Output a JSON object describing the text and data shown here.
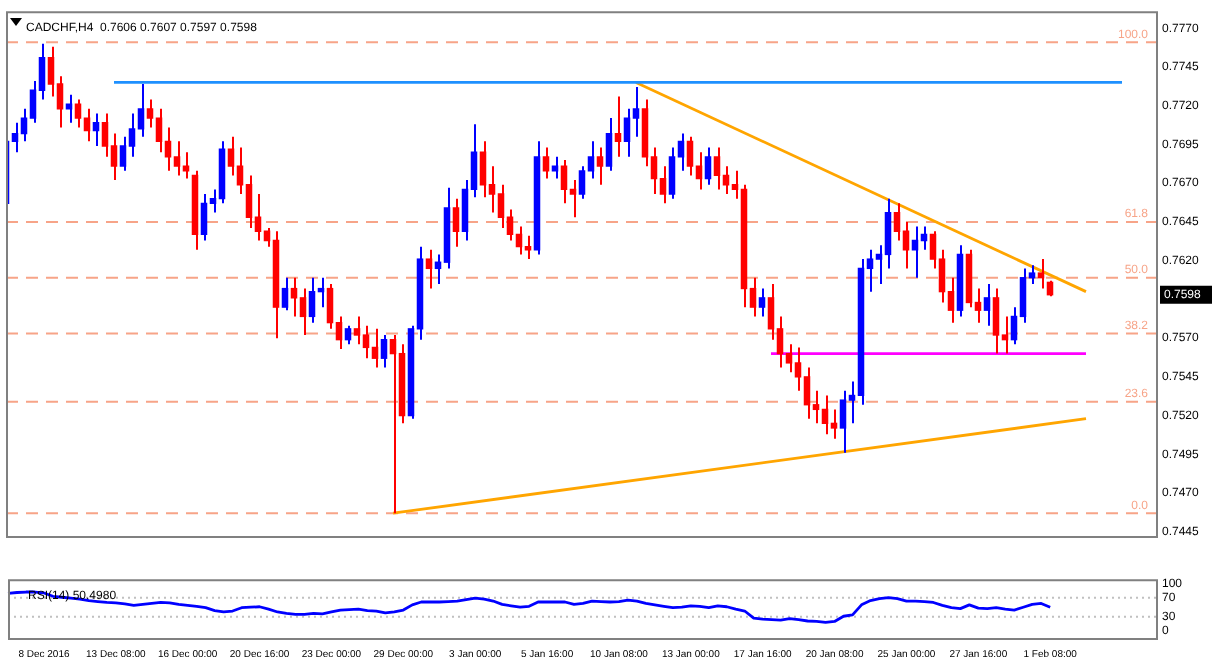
{
  "chart_data": [
    {
      "type": "candlestick",
      "title": "CADCHF,H4  0.7606 0.7607 0.7597 0.7598",
      "categories": [
        null,
        null,
        null,
        null,
        null,
        null,
        null,
        null,
        null,
        null,
        null,
        null,
        null,
        null,
        null,
        null,
        null,
        null,
        null,
        null,
        null,
        null,
        null,
        null,
        null,
        null,
        null,
        null,
        null,
        null,
        null,
        null,
        null,
        null,
        null,
        null,
        null,
        null,
        null,
        null,
        null,
        null,
        null,
        null,
        null,
        null,
        null,
        null,
        null,
        null,
        null,
        null,
        null,
        null,
        null,
        null,
        null,
        null,
        null,
        null,
        null,
        null,
        null,
        null,
        null,
        null,
        null,
        null,
        null,
        null,
        null,
        null,
        null,
        null,
        null,
        null,
        null,
        null,
        null,
        null,
        null,
        null,
        null,
        null,
        null,
        null,
        null,
        null,
        null,
        null,
        null,
        null,
        null,
        null,
        null,
        null,
        null,
        null,
        null,
        null,
        null,
        null,
        null,
        null,
        null,
        null,
        null,
        null,
        null,
        null,
        null,
        null,
        null,
        null,
        null,
        null,
        null,
        null,
        null,
        null,
        null,
        null,
        null,
        null,
        null,
        null,
        null,
        null,
        null
      ],
      "ohlc": [
        [
          0.7657,
          0.7702,
          0.7653,
          0.7697
        ],
        [
          0.7697,
          0.7709,
          0.769,
          0.7702
        ],
        [
          0.7702,
          0.7718,
          0.7697,
          0.7712
        ],
        [
          0.7712,
          0.7736,
          0.7709,
          0.773
        ],
        [
          0.773,
          0.776,
          0.7724,
          0.7751
        ],
        [
          0.7751,
          0.7758,
          0.7726,
          0.7734
        ],
        [
          0.7734,
          0.7739,
          0.7706,
          0.7718
        ],
        [
          0.7718,
          0.7727,
          0.7709,
          0.7721
        ],
        [
          0.7721,
          0.7724,
          0.7706,
          0.7712
        ],
        [
          0.7712,
          0.7718,
          0.7697,
          0.7704
        ],
        [
          0.7704,
          0.7715,
          0.7694,
          0.7709
        ],
        [
          0.7709,
          0.7715,
          0.7687,
          0.7694
        ],
        [
          0.7694,
          0.7702,
          0.7672,
          0.7681
        ],
        [
          0.7681,
          0.77,
          0.7678,
          0.7694
        ],
        [
          0.7694,
          0.7715,
          0.7687,
          0.7705
        ],
        [
          0.7705,
          0.7734,
          0.77,
          0.7718
        ],
        [
          0.7718,
          0.7724,
          0.7706,
          0.7712
        ],
        [
          0.7712,
          0.7718,
          0.769,
          0.7697
        ],
        [
          0.7697,
          0.7706,
          0.7678,
          0.7687
        ],
        [
          0.7687,
          0.7697,
          0.7675,
          0.7681
        ],
        [
          0.7681,
          0.769,
          0.7673,
          0.7678
        ],
        [
          0.7675,
          0.7678,
          0.7627,
          0.7637
        ],
        [
          0.7637,
          0.7663,
          0.7633,
          0.7657
        ],
        [
          0.7657,
          0.7666,
          0.7651,
          0.766
        ],
        [
          0.766,
          0.7697,
          0.7657,
          0.7692
        ],
        [
          0.7692,
          0.77,
          0.7675,
          0.7681
        ],
        [
          0.7681,
          0.7693,
          0.7663,
          0.7669
        ],
        [
          0.7669,
          0.7675,
          0.7641,
          0.7648
        ],
        [
          0.7648,
          0.7663,
          0.7633,
          0.7639
        ],
        [
          0.7639,
          0.7641,
          0.7629,
          0.7633
        ],
        [
          0.7633,
          0.7639,
          0.757,
          0.759
        ],
        [
          0.759,
          0.7609,
          0.7588,
          0.7602
        ],
        [
          0.7602,
          0.7609,
          0.7584,
          0.7596
        ],
        [
          0.7596,
          0.7602,
          0.7572,
          0.7584
        ],
        [
          0.7584,
          0.7609,
          0.758,
          0.76
        ],
        [
          0.76,
          0.7609,
          0.759,
          0.7602
        ],
        [
          0.7602,
          0.7605,
          0.7576,
          0.758
        ],
        [
          0.758,
          0.7584,
          0.7563,
          0.7569
        ],
        [
          0.7569,
          0.7578,
          0.7566,
          0.7576
        ],
        [
          0.7576,
          0.7584,
          0.7566,
          0.7572
        ],
        [
          0.7572,
          0.7578,
          0.7557,
          0.7564
        ],
        [
          0.7564,
          0.7576,
          0.7551,
          0.7557
        ],
        [
          0.7557,
          0.7572,
          0.7551,
          0.7569
        ],
        [
          0.7569,
          0.7572,
          0.7457,
          0.756
        ],
        [
          0.756,
          0.7566,
          0.7515,
          0.752
        ],
        [
          0.752,
          0.7578,
          0.7518,
          0.7576
        ],
        [
          0.7576,
          0.7629,
          0.7569,
          0.7621
        ],
        [
          0.7621,
          0.7627,
          0.7602,
          0.7615
        ],
        [
          0.7615,
          0.7624,
          0.7605,
          0.7619
        ],
        [
          0.7619,
          0.7667,
          0.7615,
          0.7654
        ],
        [
          0.7654,
          0.766,
          0.7629,
          0.7639
        ],
        [
          0.7639,
          0.7672,
          0.7633,
          0.7666
        ],
        [
          0.7666,
          0.7708,
          0.7661,
          0.769
        ],
        [
          0.769,
          0.7697,
          0.7661,
          0.7669
        ],
        [
          0.7669,
          0.7681,
          0.7651,
          0.7663
        ],
        [
          0.7663,
          0.7669,
          0.7641,
          0.7648
        ],
        [
          0.7648,
          0.7653,
          0.7633,
          0.7637
        ],
        [
          0.7637,
          0.7642,
          0.7624,
          0.7629
        ],
        [
          0.7629,
          0.7636,
          0.7621,
          0.7627
        ],
        [
          0.7627,
          0.7697,
          0.7624,
          0.7687
        ],
        [
          0.7687,
          0.7693,
          0.7673,
          0.7678
        ],
        [
          0.7678,
          0.7687,
          0.7673,
          0.7681
        ],
        [
          0.7681,
          0.7685,
          0.7657,
          0.7666
        ],
        [
          0.7666,
          0.7672,
          0.7648,
          0.7663
        ],
        [
          0.7663,
          0.7681,
          0.766,
          0.7678
        ],
        [
          0.7678,
          0.7697,
          0.7673,
          0.7687
        ],
        [
          0.7687,
          0.7693,
          0.7669,
          0.7681
        ],
        [
          0.7681,
          0.7712,
          0.7678,
          0.7702
        ],
        [
          0.7702,
          0.7726,
          0.7687,
          0.7697
        ],
        [
          0.7697,
          0.7718,
          0.7687,
          0.7712
        ],
        [
          0.7712,
          0.7732,
          0.77,
          0.7718
        ],
        [
          0.7718,
          0.7724,
          0.7681,
          0.7687
        ],
        [
          0.7687,
          0.7693,
          0.7663,
          0.7673
        ],
        [
          0.7673,
          0.7681,
          0.7657,
          0.7663
        ],
        [
          0.7663,
          0.7693,
          0.766,
          0.7687
        ],
        [
          0.7687,
          0.7702,
          0.7678,
          0.7697
        ],
        [
          0.7697,
          0.77,
          0.7675,
          0.7681
        ],
        [
          0.7681,
          0.769,
          0.7666,
          0.7673
        ],
        [
          0.7673,
          0.7693,
          0.7669,
          0.7687
        ],
        [
          0.7687,
          0.7693,
          0.7666,
          0.7675
        ],
        [
          0.7675,
          0.7681,
          0.7663,
          0.7669
        ],
        [
          0.7669,
          0.7678,
          0.766,
          0.7666
        ],
        [
          0.7666,
          0.7669,
          0.759,
          0.7602
        ],
        [
          0.7602,
          0.7609,
          0.7584,
          0.759
        ],
        [
          0.759,
          0.7602,
          0.7584,
          0.7596
        ],
        [
          0.7596,
          0.7605,
          0.7569,
          0.7576
        ],
        [
          0.7576,
          0.7584,
          0.7551,
          0.756
        ],
        [
          0.756,
          0.7566,
          0.7548,
          0.7554
        ],
        [
          0.7554,
          0.7564,
          0.7536,
          0.7545
        ],
        [
          0.7545,
          0.7551,
          0.7518,
          0.7527
        ],
        [
          0.7527,
          0.7536,
          0.7515,
          0.7524
        ],
        [
          0.7524,
          0.7533,
          0.7508,
          0.7515
        ],
        [
          0.7515,
          0.7524,
          0.7505,
          0.7512
        ],
        [
          0.7512,
          0.7536,
          0.7496,
          0.753
        ],
        [
          0.753,
          0.7542,
          0.7515,
          0.7533
        ],
        [
          0.7533,
          0.7621,
          0.7527,
          0.7615
        ],
        [
          0.7615,
          0.7627,
          0.76,
          0.7621
        ],
        [
          0.7621,
          0.763,
          0.7605,
          0.7624
        ],
        [
          0.7624,
          0.766,
          0.7615,
          0.7651
        ],
        [
          0.7651,
          0.7657,
          0.7633,
          0.7639
        ],
        [
          0.7639,
          0.7645,
          0.7615,
          0.7627
        ],
        [
          0.7627,
          0.7642,
          0.7609,
          0.7633
        ],
        [
          0.7633,
          0.7642,
          0.7627,
          0.7637
        ],
        [
          0.7637,
          0.7639,
          0.7615,
          0.7621
        ],
        [
          0.7621,
          0.7627,
          0.7593,
          0.76
        ],
        [
          0.76,
          0.7609,
          0.758,
          0.7588
        ],
        [
          0.7588,
          0.763,
          0.7584,
          0.7624
        ],
        [
          0.7624,
          0.7627,
          0.759,
          0.7593
        ],
        [
          0.7593,
          0.7602,
          0.758,
          0.7588
        ],
        [
          0.7588,
          0.7605,
          0.7578,
          0.7596
        ],
        [
          0.7596,
          0.7602,
          0.756,
          0.7572
        ],
        [
          0.7572,
          0.7584,
          0.756,
          0.7569
        ],
        [
          0.7569,
          0.759,
          0.7566,
          0.7584
        ],
        [
          0.7584,
          0.7615,
          0.758,
          0.7609
        ],
        [
          0.7609,
          0.7617,
          0.7605,
          0.7612
        ],
        [
          0.7612,
          0.7621,
          0.7602,
          0.7609
        ],
        [
          0.7606,
          0.7607,
          0.7597,
          0.7598
        ],
        null,
        null,
        null,
        null,
        null,
        null,
        null,
        null,
        null,
        null,
        null,
        null
      ],
      "series": [
        {
          "type": "line",
          "color": "#1e90ff",
          "values": [
            null,
            null,
            null,
            null,
            null,
            null,
            null,
            null,
            null,
            null,
            null,
            null,
            0.7735,
            null,
            null,
            null,
            null,
            null,
            null,
            null,
            null,
            null,
            null,
            null,
            null,
            null,
            null,
            null,
            null,
            null,
            null,
            null,
            null,
            null,
            null,
            null,
            null,
            null,
            null,
            null,
            null,
            null,
            null,
            null,
            null,
            null,
            null,
            null,
            null,
            null,
            null,
            null,
            null,
            null,
            null,
            null,
            null,
            null,
            null,
            null,
            null,
            null,
            null,
            null,
            null,
            null,
            null,
            null,
            null,
            null,
            null,
            null,
            null,
            null,
            null,
            null,
            null,
            null,
            null,
            null,
            null,
            null,
            null,
            null,
            null,
            null,
            null,
            null,
            null,
            null,
            null,
            null,
            null,
            null,
            null,
            null,
            null,
            null,
            null,
            null,
            null,
            null,
            null,
            null,
            null,
            null,
            null,
            null,
            null,
            null,
            null,
            null,
            null,
            null,
            null,
            null,
            null,
            null,
            null,
            null,
            null,
            null,
            null,
            null,
            0.7735,
            null,
            null,
            null,
            null
          ]
        },
        {
          "type": "line",
          "color": "#ffa500",
          "values": [
            null,
            null,
            null,
            null,
            null,
            null,
            null,
            null,
            null,
            null,
            null,
            null,
            null,
            null,
            null,
            null,
            null,
            null,
            null,
            null,
            null,
            null,
            null,
            null,
            null,
            null,
            null,
            null,
            null,
            null,
            null,
            null,
            null,
            null,
            null,
            null,
            null,
            null,
            null,
            null,
            null,
            null,
            null,
            null,
            null,
            null,
            null,
            null,
            null,
            null,
            null,
            null,
            null,
            null,
            null,
            null,
            null,
            null,
            null,
            null,
            null,
            null,
            null,
            null,
            null,
            null,
            null,
            null,
            null,
            null,
            0.7735,
            null,
            null,
            null,
            null,
            null,
            null,
            null,
            null,
            null,
            null,
            null,
            null,
            null,
            null,
            null,
            null,
            null,
            null,
            null,
            null,
            null,
            null,
            null,
            null,
            null,
            null,
            null,
            null,
            null,
            null,
            null,
            null,
            null,
            null,
            null,
            null,
            null,
            null,
            null,
            null,
            null,
            null,
            null,
            null,
            null,
            null,
            null,
            null,
            null,
            0.76,
            null,
            null,
            null,
            null,
            null,
            null,
            null,
            null
          ]
        },
        {
          "type": "line",
          "color": "#ffa500",
          "values": [
            null,
            null,
            null,
            null,
            null,
            null,
            null,
            null,
            null,
            null,
            null,
            null,
            null,
            null,
            null,
            null,
            null,
            null,
            null,
            null,
            null,
            null,
            null,
            null,
            null,
            null,
            null,
            null,
            null,
            null,
            null,
            null,
            null,
            null,
            null,
            null,
            null,
            null,
            null,
            null,
            null,
            null,
            null,
            0.7457,
            null,
            null,
            null,
            null,
            null,
            null,
            null,
            null,
            null,
            null,
            null,
            null,
            null,
            null,
            null,
            null,
            null,
            null,
            null,
            null,
            null,
            null,
            null,
            null,
            null,
            null,
            null,
            null,
            null,
            null,
            null,
            null,
            null,
            null,
            null,
            null,
            null,
            null,
            null,
            null,
            null,
            null,
            null,
            null,
            null,
            null,
            null,
            null,
            null,
            null,
            null,
            null,
            null,
            null,
            null,
            null,
            null,
            null,
            null,
            null,
            null,
            null,
            null,
            null,
            null,
            null,
            null,
            null,
            null,
            null,
            null,
            null,
            null,
            null,
            null,
            null,
            0.7518,
            null,
            null,
            null,
            null,
            null,
            null,
            null,
            null
          ]
        },
        {
          "type": "line",
          "color": "#ff00ff",
          "values": [
            null,
            null,
            null,
            null,
            null,
            null,
            null,
            null,
            null,
            null,
            null,
            null,
            null,
            null,
            null,
            null,
            null,
            null,
            null,
            null,
            null,
            null,
            null,
            null,
            null,
            null,
            null,
            null,
            null,
            null,
            null,
            null,
            null,
            null,
            null,
            null,
            null,
            null,
            null,
            null,
            null,
            null,
            null,
            null,
            null,
            null,
            null,
            null,
            null,
            null,
            null,
            null,
            null,
            null,
            null,
            null,
            null,
            null,
            null,
            null,
            null,
            null,
            null,
            null,
            null,
            null,
            null,
            null,
            null,
            null,
            null,
            null,
            null,
            null,
            null,
            null,
            null,
            null,
            null,
            null,
            null,
            null,
            null,
            null,
            null,
            0.756,
            null,
            null,
            null,
            null,
            null,
            null,
            null,
            null,
            null,
            null,
            null,
            null,
            null,
            null,
            null,
            null,
            null,
            null,
            null,
            null,
            null,
            null,
            null,
            null,
            null,
            null,
            null,
            null,
            null,
            null,
            null,
            null,
            null,
            null,
            0.756,
            null,
            null,
            null,
            null,
            null,
            null,
            null,
            null
          ]
        }
      ],
      "ylim": [
        0.7441,
        0.7781
      ],
      "yticks": [
        {
          "value": 0.777,
          "label": "0.7770"
        },
        0.7745,
        {
          "value": 0.772,
          "label": "0.7720"
        },
        0.7695,
        {
          "value": 0.767,
          "label": "0.7670"
        },
        0.7645,
        {
          "value": 0.762,
          "label": "0.7620"
        },
        {
          "value": 0.757,
          "label": "0.7570"
        },
        0.7545,
        {
          "value": 0.752,
          "label": "0.7520"
        },
        0.7495,
        {
          "value": 0.747,
          "label": "0.7470"
        },
        0.7445
      ],
      "ref_lines": [
        {
          "axis": "y",
          "value": 0.7761,
          "color": "#f7a488",
          "line_style": "dashed"
        },
        {
          "axis": "y",
          "value": 0.7645,
          "color": "#f7a488",
          "line_style": "dashed"
        },
        {
          "axis": "y",
          "value": 0.7609,
          "color": "#f7a488",
          "line_style": "dashed"
        },
        {
          "axis": "y",
          "value": 0.7573,
          "color": "#f7a488",
          "line_style": "dashed"
        },
        {
          "axis": "y",
          "value": 0.7529,
          "color": "#f7a488",
          "line_style": "dashed"
        },
        {
          "axis": "y",
          "value": 0.7457,
          "color": "#f7a488",
          "line_style": "dashed"
        }
      ],
      "annotations": [
        "0.7598",
        {
          "text": "100.0",
          "y": 0.7761
        },
        {
          "text": "61.8",
          "y": 0.7645
        },
        {
          "text": "50.0",
          "y": 0.7609
        },
        {
          "text": "38.2",
          "y": 0.7573
        },
        {
          "text": "23.6",
          "y": 0.7529
        },
        {
          "text": "0.0",
          "y": 0.7457
        }
      ],
      "tick_labels": "y"
    },
    {
      "type": "line",
      "title": "RSI(14) 50.4980",
      "categories": [
        null,
        null,
        null,
        null,
        "8 Dec 2016",
        null,
        null,
        null,
        null,
        null,
        null,
        null,
        "13 Dec 08:00",
        null,
        null,
        null,
        null,
        null,
        null,
        null,
        "16 Dec 00:00",
        null,
        null,
        null,
        null,
        null,
        null,
        null,
        "20 Dec 16:00",
        null,
        null,
        null,
        null,
        null,
        null,
        null,
        "23 Dec 00:00",
        null,
        null,
        null,
        null,
        null,
        null,
        null,
        "29 Dec 00:00",
        null,
        null,
        null,
        null,
        null,
        null,
        null,
        "3 Jan 00:00",
        null,
        null,
        null,
        null,
        null,
        null,
        null,
        "5 Jan 16:00",
        null,
        null,
        null,
        null,
        null,
        null,
        null,
        "10 Jan 08:00",
        null,
        null,
        null,
        null,
        null,
        null,
        null,
        "13 Jan 00:00",
        null,
        null,
        null,
        null,
        null,
        null,
        null,
        "17 Jan 16:00",
        null,
        null,
        null,
        null,
        null,
        null,
        null,
        "20 Jan 08:00",
        null,
        null,
        null,
        null,
        null,
        null,
        null,
        "25 Jan 00:00",
        null,
        null,
        null,
        null,
        null,
        null,
        null,
        "27 Jan 16:00",
        null,
        null,
        null,
        null,
        null,
        null,
        null,
        "1 Feb 08:00",
        null,
        null,
        null,
        null,
        null,
        null,
        null,
        null,
        null,
        null,
        null,
        null
      ],
      "series": [
        {
          "color": "#0000ff",
          "values": [
            79,
            81,
            82,
            82,
            80,
            73,
            71,
            69,
            67,
            64,
            62,
            60,
            59,
            57,
            54,
            56,
            58,
            60,
            59,
            56,
            54,
            52,
            49,
            43,
            40,
            42,
            49,
            50,
            51,
            46,
            40,
            37,
            35,
            35,
            37,
            36,
            40,
            44,
            45,
            46,
            43,
            42,
            38,
            40,
            44,
            55,
            61,
            61,
            61,
            62,
            63,
            66,
            69,
            67,
            63,
            56,
            53,
            50,
            52,
            61,
            61,
            61,
            61,
            56,
            58,
            63,
            62,
            61,
            62,
            65,
            63,
            58,
            55,
            52,
            49,
            50,
            53,
            52,
            49,
            53,
            51,
            46,
            42,
            27,
            25,
            24,
            23,
            26,
            24,
            21,
            20,
            18,
            20,
            31,
            34,
            55,
            64,
            68,
            70,
            68,
            63,
            63,
            62,
            60,
            54,
            49,
            47,
            55,
            48,
            47,
            49,
            46,
            44,
            50,
            56,
            58,
            50,
            null,
            null,
            null,
            null,
            null,
            null,
            null,
            null,
            null,
            null,
            null,
            null
          ]
        }
      ],
      "ylim": [
        -19,
        109
      ],
      "yticks": [
        0,
        30,
        70,
        100
      ],
      "ref_lines": [
        {
          "axis": "y",
          "value": 30,
          "color": "#c0c0c0",
          "line_style": "dotted"
        },
        {
          "axis": "y",
          "value": 70,
          "color": "#c0c0c0",
          "line_style": "dotted"
        }
      ]
    }
  ]
}
